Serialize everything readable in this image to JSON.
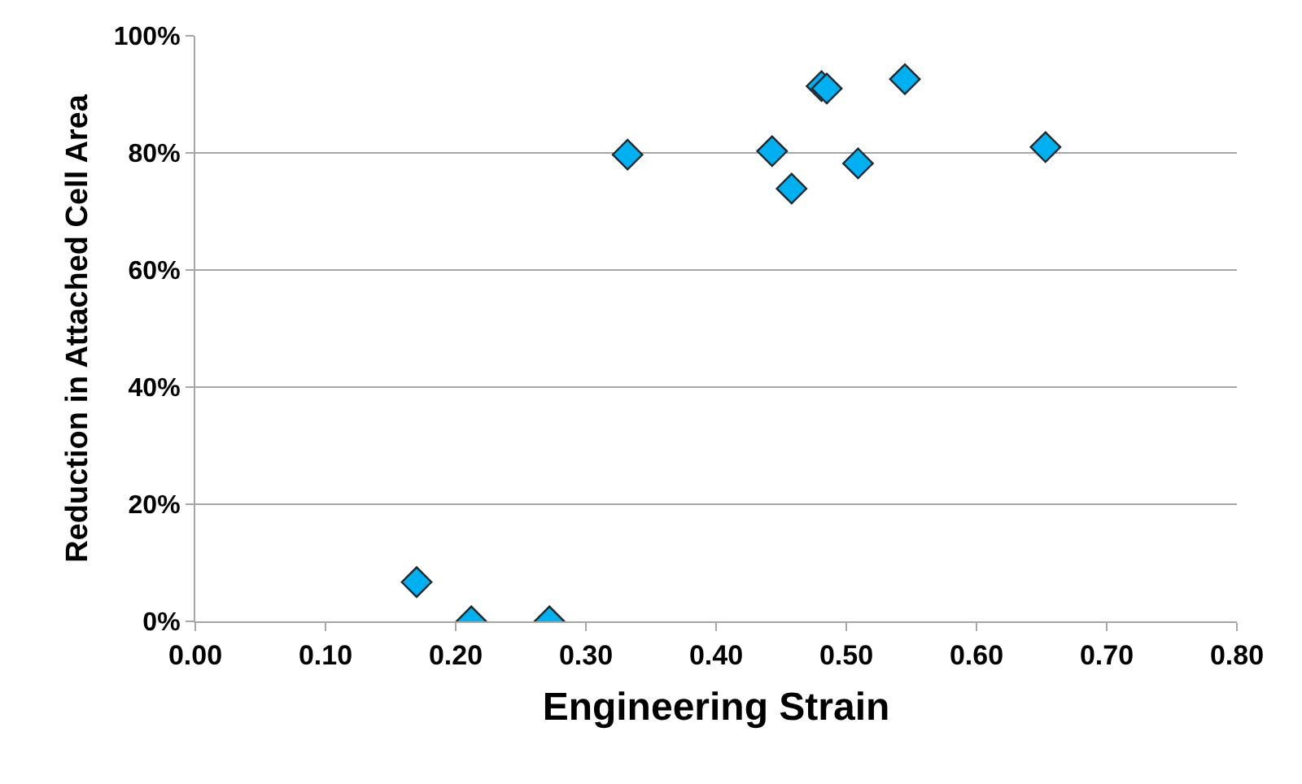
{
  "chart_data": {
    "type": "scatter",
    "xlabel": "Engineering Strain",
    "ylabel": "Reduction in Attached Cell Area",
    "x": [
      0.17,
      0.212,
      0.272,
      0.332,
      0.443,
      0.458,
      0.481,
      0.485,
      0.509,
      0.545,
      0.653
    ],
    "series": [
      {
        "color": "#00b0f0",
        "values": [
          6.7,
          0,
          0,
          79.7,
          80.3,
          73.9,
          91.4,
          91,
          78.2,
          92.6,
          81.0
        ]
      }
    ],
    "xlim": [
      0,
      0.8
    ],
    "xticks": [
      {
        "value": 0,
        "label": "0.00"
      },
      {
        "value": 0.1,
        "label": "0.10"
      },
      {
        "value": 0.2,
        "label": "0.20"
      },
      {
        "value": 0.3,
        "label": "0.30"
      },
      {
        "value": 0.4,
        "label": "0.40"
      },
      {
        "value": 0.5,
        "label": "0.50"
      },
      {
        "value": 0.6,
        "label": "0.60"
      },
      {
        "value": 0.7,
        "label": "0.70"
      },
      {
        "value": 0.8,
        "label": "0.80"
      }
    ],
    "ylim": [
      0,
      100
    ],
    "yticks": [
      {
        "value": 0,
        "label": "0%"
      },
      {
        "value": 20,
        "label": "20%"
      },
      {
        "value": 40,
        "label": "40%"
      },
      {
        "value": 60,
        "label": "60%"
      },
      {
        "value": 80,
        "label": "80%"
      },
      {
        "value": 100,
        "label": "100%"
      }
    ],
    "grid": "y",
    "marker": "diamond"
  }
}
